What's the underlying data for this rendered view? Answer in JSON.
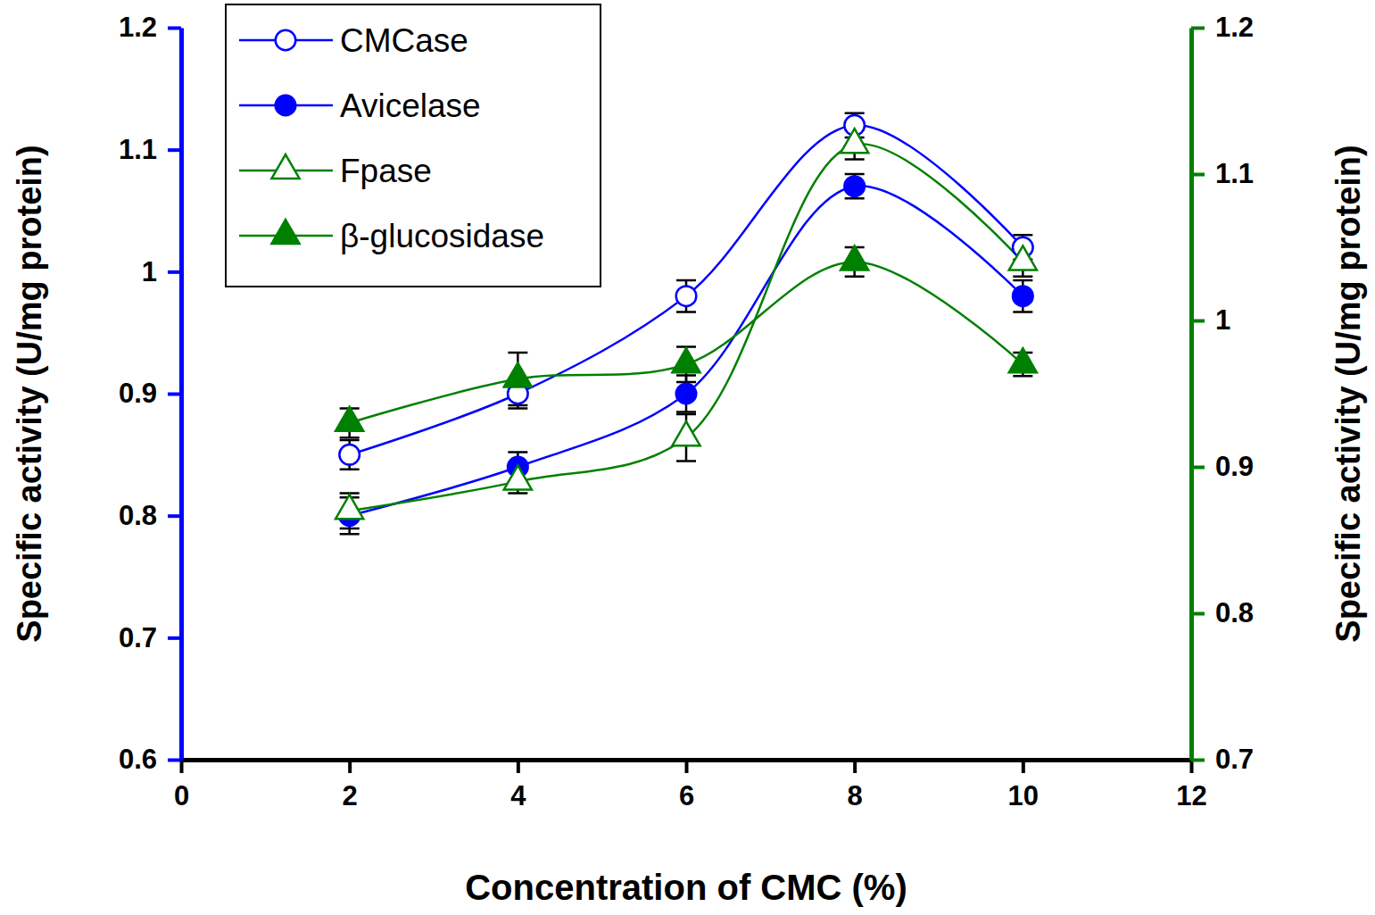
{
  "chart_data": {
    "type": "line",
    "xlabel": "Concentration of CMC (%)",
    "ylabel": "Specific activity (U/mg protein)",
    "y2label": "Specific activity (U/mg protein)",
    "x": [
      2,
      4,
      6,
      8,
      10
    ],
    "xlim": [
      0,
      12
    ],
    "xticks": [
      0,
      2,
      4,
      6,
      8,
      10,
      12
    ],
    "ylim": [
      0.6,
      1.2
    ],
    "yticks": [
      0.6,
      0.7,
      0.8,
      0.9,
      1,
      1.1,
      1.2
    ],
    "y2lim": [
      0.7,
      1.2
    ],
    "y2ticks": [
      0.7,
      0.8,
      0.9,
      1,
      1.1,
      1.2
    ],
    "legend": "upper left",
    "series": [
      {
        "name": "CMCase",
        "color": "#0000ff",
        "marker": "open-circle",
        "axis": "y",
        "values": [
          0.85,
          0.9,
          0.98,
          1.12,
          1.02
        ],
        "errors": [
          0.012,
          0.012,
          0.013,
          0.01,
          0.01
        ]
      },
      {
        "name": "Avicelase",
        "color": "#0000ff",
        "marker": "circle",
        "axis": "y",
        "values": [
          0.8,
          0.84,
          0.9,
          1.07,
          0.98
        ],
        "errors": [
          0.015,
          0.012,
          0.015,
          0.01,
          0.013
        ]
      },
      {
        "name": "Fpase",
        "color": "#008000",
        "marker": "open-triangle",
        "axis": "y2",
        "values": [
          0.87,
          0.89,
          0.92,
          1.12,
          1.04
        ],
        "errors": [
          0.012,
          0.008,
          0.016,
          0.01,
          0.01
        ]
      },
      {
        "name": "β-glucosidase",
        "color": "#008000",
        "marker": "triangle",
        "axis": "y2",
        "values": [
          0.93,
          0.96,
          0.97,
          1.04,
          0.97
        ],
        "errors": [
          0.01,
          0.018,
          0.012,
          0.01,
          0.008
        ]
      }
    ]
  }
}
